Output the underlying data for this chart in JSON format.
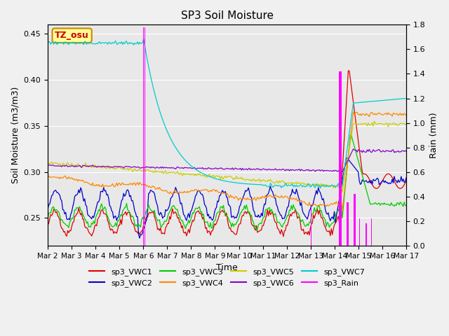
{
  "title": "SP3 Soil Moisture",
  "xlabel": "Time",
  "ylabel_left": "Soil Moisture (m3/m3)",
  "ylabel_right": "Rain (mm)",
  "ylim_left": [
    0.22,
    0.46
  ],
  "ylim_right": [
    0.0,
    1.8
  ],
  "background_color": "#e8e8e8",
  "grid_color": "#ffffff",
  "tz_label": "TZ_osu",
  "tz_box_color": "#ffff99",
  "tz_box_edge": "#cc8800",
  "tz_text_color": "#cc0000",
  "line_colors": {
    "sp3_VWC1": "#dd0000",
    "sp3_VWC2": "#0000cc",
    "sp3_VWC3": "#00cc00",
    "sp3_VWC4": "#ff8800",
    "sp3_VWC5": "#cccc00",
    "sp3_VWC6": "#8800cc",
    "sp3_VWC7": "#00cccc",
    "sp3_Rain": "#ff00ff"
  },
  "x_tick_labels": [
    "Mar 2",
    "Mar 3",
    "Mar 4",
    "Mar 5",
    "Mar 6",
    "Mar 7",
    "Mar 8",
    "Mar 9",
    "Mar 10",
    "Mar 11",
    "Mar 12",
    "Mar 13",
    "Mar 14",
    "Mar 15",
    "Mar 16",
    "Mar 17"
  ],
  "num_points": 360
}
